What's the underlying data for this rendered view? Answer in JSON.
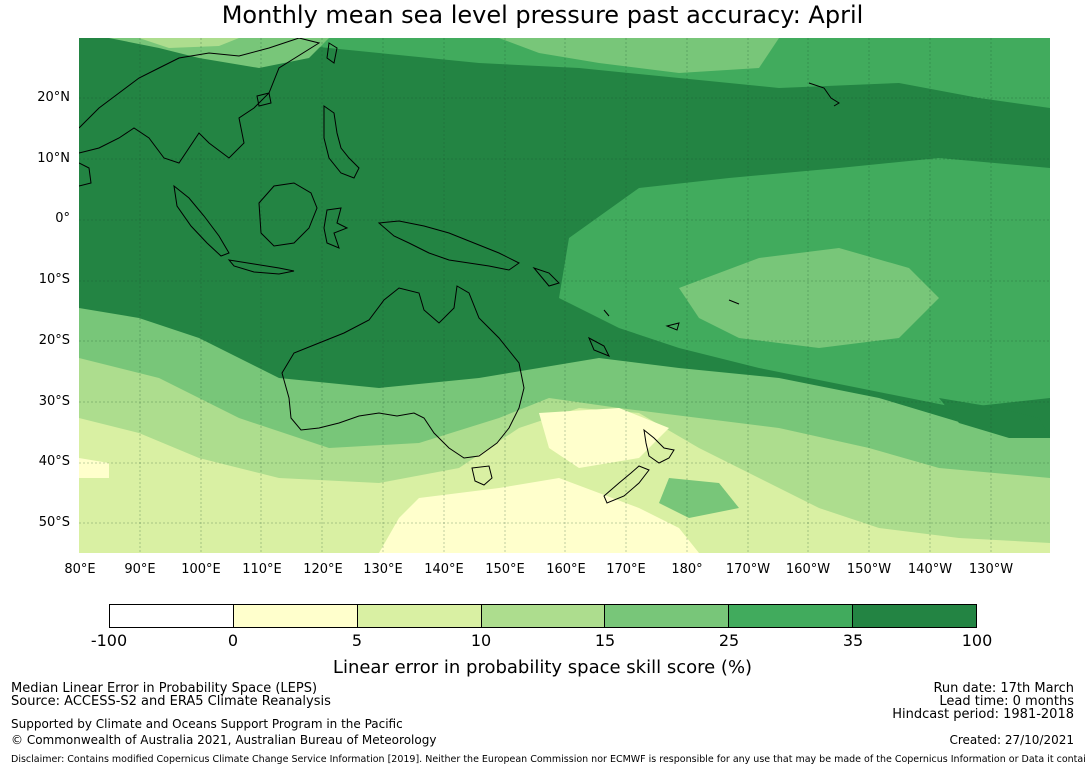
{
  "title": "Monthly mean sea level pressure past accuracy: April",
  "map": {
    "lat_labels": [
      "20°N",
      "10°N",
      "0°",
      "10°S",
      "20°S",
      "30°S",
      "40°S",
      "50°S"
    ],
    "lon_labels": [
      "80°E",
      "90°E",
      "100°E",
      "110°E",
      "120°E",
      "130°E",
      "140°E",
      "150°E",
      "160°E",
      "170°E",
      "180°",
      "170°W",
      "160°W",
      "150°W",
      "140°W",
      "130°W"
    ]
  },
  "colorbar": {
    "ticks": [
      "-100",
      "0",
      "5",
      "10",
      "15",
      "25",
      "35",
      "100"
    ],
    "colors": [
      "#ffffff",
      "#ffffcc",
      "#d9f0a3",
      "#addd8e",
      "#78c679",
      "#41ab5d",
      "#238443"
    ],
    "label": "Linear error in probability space skill score (%)"
  },
  "footer": {
    "left_line1": "Median Linear Error in Probability Space (LEPS)",
    "left_line2": "Source: ACCESS-S2 and ERA5 Climate Reanalysis",
    "left_line3": "Supported by Climate and Oceans Support Program in the Pacific",
    "left_line4": "© Commonwealth of Australia 2021, Australian Bureau of Meteorology",
    "right_line1": "Run date: 17th March",
    "right_line2": "Lead time: 0 months",
    "right_line3": "Hindcast period: 1981-2018",
    "right_line4": "Created: 27/10/2021",
    "disclaimer": "Disclaimer: Contains modified Copernicus Climate Change Service Information [2019]. Neither the European Commission nor ECMWF is responsible for any use that may be made of the Copernicus Information or Data it contains."
  }
}
